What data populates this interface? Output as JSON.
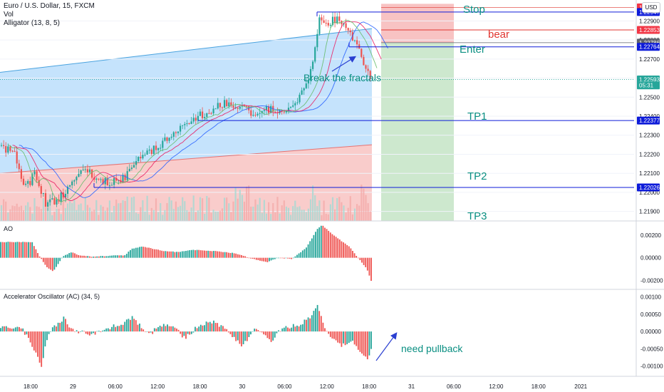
{
  "header": {
    "symbol_line": "Euro / U.S. Dollar, 15, FXCM",
    "vol_label": "Vol",
    "alligator_label": "Alligator (13, 8, 5)",
    "currency": "USD"
  },
  "panes": {
    "ao_title": "AO",
    "ac_title": "Accelerator Oscillator (AC) (34, 5)"
  },
  "annotations": {
    "stop": "Stop",
    "bear": "bear",
    "enter": "Enter",
    "break": "Break the fractals",
    "tp1": "TP1",
    "tp2": "TP2",
    "tp3": "TP3",
    "pullback": "need pullback"
  },
  "price_axis": {
    "ticks": [
      "1.22900",
      "1.22800",
      "1.22700",
      "1.22600",
      "1.22500",
      "1.22400",
      "1.22300",
      "1.22200",
      "1.22100",
      "1.22000",
      "1.21900"
    ],
    "tags": [
      {
        "text": "1.22971",
        "bg": "#f23645",
        "fg": "#ffffff",
        "price": 1.22971
      },
      {
        "text": "1.22947",
        "bg": "#0d1bd9",
        "fg": "#ffffff",
        "price": 1.22947
      },
      {
        "text": "1.22853",
        "bg": "#f23645",
        "fg": "#ffffff",
        "price": 1.22853
      },
      {
        "text": "1.22786",
        "bg": "#5d606b",
        "fg": "#ffffff",
        "price": 1.22786
      },
      {
        "text": "1.22764",
        "bg": "#0d1bd9",
        "fg": "#ffffff",
        "price": 1.22764
      },
      {
        "text": "1.22593",
        "bg": "#26a69a",
        "fg": "#ffffff",
        "price": 1.22593
      },
      {
        "text": "05:31",
        "bg": "#26a69a",
        "fg": "#ffffff",
        "price": 1.22562
      },
      {
        "text": "1.22377",
        "bg": "#0d1bd9",
        "fg": "#ffffff",
        "price": 1.22377
      },
      {
        "text": "1.22026",
        "bg": "#0d1bd9",
        "fg": "#ffffff",
        "price": 1.22026
      }
    ]
  },
  "ao_axis": {
    "ticks": [
      "0.00200",
      "0.00000",
      "-0.00200"
    ]
  },
  "ac_axis": {
    "ticks": [
      "0.00100",
      "0.00050",
      "0.00000",
      "-0.00050",
      "-0.00100"
    ]
  },
  "time_axis": {
    "ticks": [
      "18:00",
      "29",
      "06:00",
      "12:00",
      "18:00",
      "30",
      "06:00",
      "12:00",
      "18:00",
      "31",
      "06:00",
      "12:00",
      "18:00",
      "2021"
    ]
  },
  "colors": {
    "up": "#26a69a",
    "down": "#ef5350",
    "blue_zone": "#bbdefb",
    "red_zone": "#f8c3c2",
    "green_zone": "#c8e6c9",
    "level_line": "#0d1bd9",
    "annotation_teal": "#0a8f82",
    "annotation_red": "#e0342f",
    "arrow": "#2a3fd1"
  },
  "chart_data": [
    {
      "type": "candlestick",
      "title": "Euro / U.S. Dollar, 15, FXCM",
      "ylim": [
        1.2185,
        1.2301
      ],
      "levels": {
        "stop": 1.22971,
        "stop_line": 1.22947,
        "bear": 1.22853,
        "enter": 1.22764,
        "tp1": 1.22377,
        "tp2": 1.22026,
        "last": 1.22593
      },
      "close_path": [
        [
          0,
          1.2225
        ],
        [
          20,
          1.222
        ],
        [
          35,
          1.2202
        ],
        [
          50,
          1.221
        ],
        [
          65,
          1.2193
        ],
        [
          85,
          1.2198
        ],
        [
          105,
          1.2205
        ],
        [
          120,
          1.2213
        ],
        [
          140,
          1.2206
        ],
        [
          155,
          1.2205
        ],
        [
          175,
          1.2208
        ],
        [
          195,
          1.2217
        ],
        [
          215,
          1.2223
        ],
        [
          240,
          1.2229
        ],
        [
          260,
          1.2237
        ],
        [
          280,
          1.224
        ],
        [
          300,
          1.2244
        ],
        [
          320,
          1.2247
        ],
        [
          340,
          1.2244
        ],
        [
          360,
          1.2241
        ],
        [
          380,
          1.2244
        ],
        [
          400,
          1.2241
        ],
        [
          420,
          1.2249
        ],
        [
          435,
          1.2262
        ],
        [
          448,
          1.229
        ],
        [
          460,
          1.2289
        ],
        [
          475,
          1.2291
        ],
        [
          488,
          1.2284
        ],
        [
          500,
          1.2278
        ],
        [
          510,
          1.2268
        ],
        [
          520,
          1.2259
        ]
      ]
    },
    {
      "type": "bar",
      "title": "AO",
      "ylim": [
        -0.0028,
        0.0032
      ],
      "path": [
        [
          0,
          0.0014
        ],
        [
          45,
          0.0014
        ],
        [
          55,
          0.0002
        ],
        [
          65,
          -0.0008
        ],
        [
          75,
          -0.0012
        ],
        [
          88,
          0.0001
        ],
        [
          100,
          0.0005
        ],
        [
          112,
          0.0002
        ],
        [
          130,
          0.0001
        ],
        [
          160,
          0.0002
        ],
        [
          175,
          0.0002
        ],
        [
          185,
          0.0008
        ],
        [
          200,
          0.001
        ],
        [
          230,
          0.0006
        ],
        [
          250,
          0.0005
        ],
        [
          270,
          0.0007
        ],
        [
          300,
          0.0006
        ],
        [
          330,
          0.0004
        ],
        [
          355,
          -0.0001
        ],
        [
          375,
          -0.0004
        ],
        [
          390,
          0.0
        ],
        [
          410,
          -0.0001
        ],
        [
          430,
          0.0009
        ],
        [
          445,
          0.0025
        ],
        [
          452,
          0.0029
        ],
        [
          468,
          0.002
        ],
        [
          490,
          0.001
        ],
        [
          505,
          -0.0002
        ],
        [
          515,
          -0.001
        ],
        [
          522,
          -0.0022
        ]
      ]
    },
    {
      "type": "bar",
      "title": "Accelerator Oscillator (AC) (34, 5)",
      "ylim": [
        -0.0013,
        0.0012
      ],
      "path": [
        [
          0,
          0.0001
        ],
        [
          30,
          0.0001
        ],
        [
          40,
          -0.0002
        ],
        [
          50,
          -0.0006
        ],
        [
          58,
          -0.001
        ],
        [
          64,
          -0.0004
        ],
        [
          70,
          0.0
        ],
        [
          80,
          0.0002
        ],
        [
          90,
          0.0004
        ],
        [
          98,
          0.0001
        ],
        [
          110,
          0.0
        ],
        [
          130,
          -0.0001
        ],
        [
          150,
          0.0001
        ],
        [
          170,
          0.0002
        ],
        [
          185,
          0.0004
        ],
        [
          195,
          0.0002
        ],
        [
          210,
          -0.0001
        ],
        [
          225,
          0.0002
        ],
        [
          240,
          0.0002
        ],
        [
          260,
          -0.0002
        ],
        [
          280,
          0.0002
        ],
        [
          300,
          0.0003
        ],
        [
          320,
          0.0
        ],
        [
          340,
          -0.0004
        ],
        [
          360,
          0.0001
        ],
        [
          380,
          -0.0003
        ],
        [
          395,
          0.0001
        ],
        [
          420,
          0.0002
        ],
        [
          435,
          0.0004
        ],
        [
          445,
          0.0008
        ],
        [
          455,
          0.0001
        ],
        [
          465,
          -0.0002
        ],
        [
          480,
          -0.0004
        ],
        [
          495,
          -0.0003
        ],
        [
          505,
          -0.0006
        ],
        [
          515,
          -0.0008
        ],
        [
          522,
          -0.0005
        ]
      ]
    }
  ]
}
